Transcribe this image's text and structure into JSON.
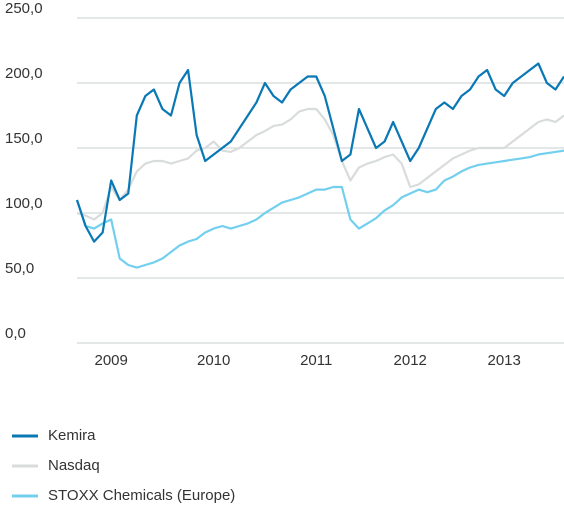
{
  "chart_data": {
    "type": "line",
    "categories": [
      null,
      null,
      null,
      null,
      "2009",
      null,
      null,
      null,
      null,
      null,
      null,
      null,
      null,
      null,
      null,
      null,
      "2010",
      null,
      null,
      null,
      null,
      null,
      null,
      null,
      null,
      null,
      null,
      null,
      "2011",
      null,
      null,
      null,
      null,
      null,
      null,
      null,
      null,
      null,
      null,
      "2012",
      null,
      null,
      null,
      null,
      null,
      null,
      null,
      null,
      null,
      null,
      "2013",
      null,
      null,
      null,
      null,
      null,
      null,
      null
    ],
    "series": [
      {
        "name": "Kemira",
        "color": "#0a78b5",
        "values": [
          110,
          90,
          78,
          85,
          125,
          110,
          115,
          175,
          190,
          195,
          180,
          175,
          200,
          210,
          160,
          140,
          145,
          150,
          155,
          165,
          175,
          185,
          200,
          190,
          185,
          195,
          200,
          205,
          205,
          190,
          165,
          140,
          145,
          180,
          165,
          150,
          155,
          170,
          155,
          140,
          150,
          165,
          180,
          185,
          180,
          190,
          195,
          205,
          210,
          195,
          190,
          200,
          205,
          210,
          215,
          200,
          195,
          205
        ]
      },
      {
        "name": "Nasdaq",
        "color": "#d9dcdc",
        "values": [
          100,
          98,
          95,
          100,
          120,
          110,
          118,
          132,
          138,
          140,
          140,
          138,
          140,
          142,
          148,
          150,
          155,
          148,
          147,
          150,
          155,
          160,
          163,
          167,
          168,
          172,
          178,
          180,
          180,
          172,
          160,
          140,
          125,
          135,
          138,
          140,
          143,
          145,
          138,
          120,
          122,
          127,
          132,
          137,
          142,
          145,
          148,
          150,
          150,
          150,
          150,
          155,
          160,
          165,
          170,
          172,
          170,
          175
        ]
      },
      {
        "name": "STOXX Chemicals (Europe)",
        "color": "#72cfee",
        "values": [
          110,
          90,
          88,
          92,
          95,
          65,
          60,
          58,
          60,
          62,
          65,
          70,
          75,
          78,
          80,
          85,
          88,
          90,
          88,
          90,
          92,
          95,
          100,
          104,
          108,
          110,
          112,
          115,
          118,
          118,
          120,
          120,
          95,
          88,
          92,
          96,
          102,
          106,
          112,
          115,
          118,
          116,
          118,
          125,
          128,
          132,
          135,
          137,
          138,
          139,
          140,
          141,
          142,
          143,
          145,
          146,
          147,
          148
        ]
      }
    ],
    "ylim": [
      0,
      250
    ],
    "yticks": [
      {
        "value": 0,
        "label": "0,0"
      },
      {
        "value": 50,
        "label": "50,0"
      },
      {
        "value": 100,
        "label": "100,0"
      },
      {
        "value": 150,
        "label": "150,0"
      },
      {
        "value": 200,
        "label": "200,0"
      },
      {
        "value": 250,
        "label": "250,0"
      }
    ],
    "grid": true,
    "legend": "bottom"
  }
}
